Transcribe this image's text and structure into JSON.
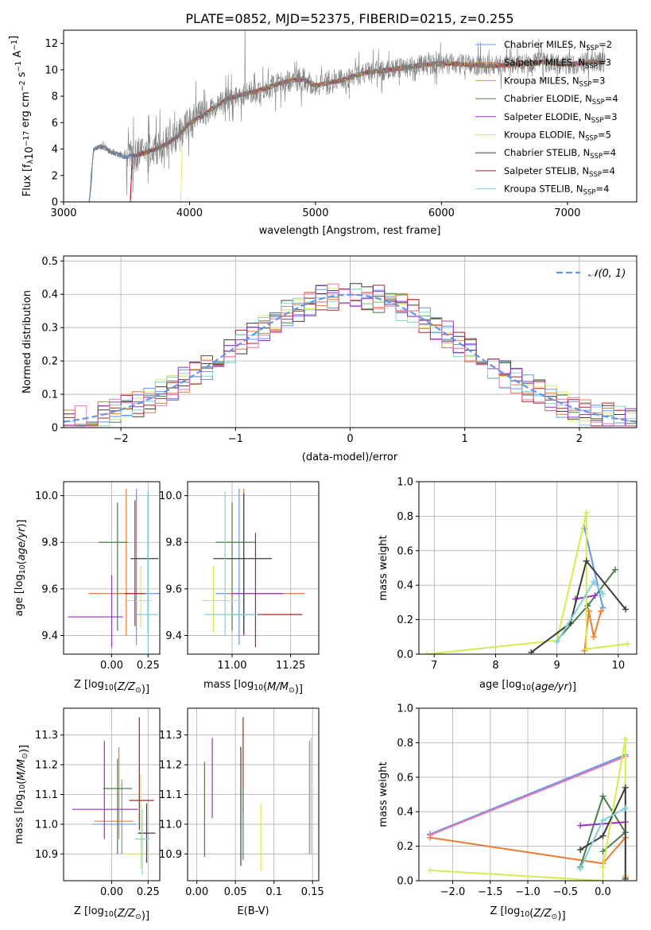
{
  "figure": {
    "title": "PLATE=0852, MJD=52375, FIBERID=0215, z=0.255"
  },
  "colors": {
    "series": [
      "#6495ed",
      "#ee7b30",
      "#c8a020",
      "#4a7f4a",
      "#9b30c8",
      "#d8e860",
      "#3c3c3c",
      "#b22222",
      "#7fd2d8"
    ],
    "kroupa_elodie_line": "#d4ec50",
    "spectrum": "#808080",
    "grid": "#b0b0b0",
    "normal_curve": "#6495ed",
    "salpeter_elodie_right": "#e87ab0"
  },
  "chart_data": [
    {
      "id": "spectrum",
      "type": "line",
      "xlabel": "wavelength [Angstrom, rest frame]",
      "ylabel": "Flux [f_λ 10^-17 erg cm^-2 s^-1 A^-1]",
      "xlim": [
        3000,
        7550
      ],
      "ylim": [
        0,
        13
      ],
      "xticks": [
        3000,
        4000,
        5000,
        6000,
        7000
      ],
      "yticks": [
        0,
        2,
        4,
        6,
        8,
        10,
        12
      ],
      "legend_position": "upper-right",
      "series": [
        {
          "name": "Chabrier MILES, N_SSP=2",
          "start": 3200
        },
        {
          "name": "Salpeter MILES, N_SSP=3",
          "start": 3530
        },
        {
          "name": "Kroupa MILES, N_SSP=3",
          "start": 3530
        },
        {
          "name": "Chabrier ELODIE, N_SSP=4",
          "start": 3530
        },
        {
          "name": "Salpeter ELODIE, N_SSP=3",
          "start": 3530
        },
        {
          "name": "Kroupa ELODIE, N_SSP=5",
          "start": 3930
        },
        {
          "name": "Chabrier STELIB, N_SSP=4",
          "start": 3200
        },
        {
          "name": "Salpeter STELIB, N_SSP=4",
          "start": 3530
        },
        {
          "name": "Kroupa STELIB, N_SSP=4",
          "start": 3200
        }
      ],
      "continuum": {
        "x": [
          3200,
          3240,
          3300,
          3400,
          3500,
          3600,
          3700,
          3800,
          3900,
          4000,
          4100,
          4200,
          4300,
          4400,
          4500,
          4600,
          4700,
          4800,
          4900,
          5000,
          5200,
          5400,
          5600,
          5800,
          6000,
          6200,
          6400,
          6600,
          6800,
          7000,
          7200,
          7300
        ],
        "y": [
          0.0,
          4.0,
          4.2,
          3.7,
          3.4,
          3.6,
          3.9,
          4.3,
          4.9,
          6.0,
          6.5,
          7.2,
          7.8,
          8.1,
          8.3,
          8.6,
          8.9,
          9.2,
          9.3,
          8.8,
          9.2,
          9.8,
          10.0,
          10.3,
          10.5,
          10.4,
          10.3,
          10.4,
          10.6,
          10.4,
          10.6,
          10.6
        ]
      }
    },
    {
      "id": "residuals",
      "type": "line",
      "xlabel": "(data-model)/error",
      "ylabel": "Normed distribution",
      "xlim": [
        -2.5,
        2.5
      ],
      "ylim": [
        0,
        0.515
      ],
      "xticks": [
        -2,
        -1,
        0,
        1,
        2
      ],
      "yticks": [
        0.0,
        0.1,
        0.2,
        0.3,
        0.4,
        0.5
      ],
      "legend": "𝒩(0, 1)",
      "legend_position": "upper-right",
      "curve": "normal pdf, mean 0, sigma 1",
      "bin_width": 0.1
    },
    {
      "id": "age-vs-Z",
      "type": "scatter",
      "xlabel": "Z [log10(Z/Z⊙)]",
      "ylabel": "age  [log10(age/yr)]",
      "xlim": [
        -0.33,
        0.33
      ],
      "ylim": [
        9.32,
        10.06
      ],
      "xticks": [
        0.0,
        0.25
      ],
      "yticks": [
        9.4,
        9.6,
        9.8,
        10.0
      ],
      "points": [
        {
          "c": 0,
          "x": 0.17,
          "y": 9.58,
          "xe": [
            0.14,
            0.18
          ],
          "ye": [
            0.22,
            0.45
          ]
        },
        {
          "c": 1,
          "x": 0.1,
          "y": 9.58,
          "xe": [
            0.26,
            0.06
          ],
          "ye": [
            0.18,
            0.45
          ]
        },
        {
          "c": 3,
          "x": 0.04,
          "y": 9.8,
          "xe": [
            0.13,
            0.07
          ],
          "ye": [
            0.38,
            0.17
          ]
        },
        {
          "c": 4,
          "x": 0.0,
          "y": 9.48,
          "xe": [
            0.3,
            0.08
          ],
          "ye": [
            0.13,
            0.18
          ]
        },
        {
          "c": 5,
          "x": 0.2,
          "y": 9.55,
          "xe": [
            0.1,
            0.08
          ],
          "ye": [
            0.12,
            0.15
          ]
        },
        {
          "c": 6,
          "x": 0.25,
          "y": 9.73,
          "xe": [
            0.12,
            0.07
          ],
          "ye": [
            0.32,
            0.28
          ]
        },
        {
          "c": 7,
          "x": 0.16,
          "y": 9.58,
          "xe": [
            0.07,
            0.07
          ],
          "ye": [
            0.14,
            0.4
          ]
        },
        {
          "c": 8,
          "x": 0.25,
          "y": 9.49,
          "xe": [
            0.08,
            0.07
          ],
          "ye": [
            0.25,
            0.53
          ]
        }
      ]
    },
    {
      "id": "age-vs-mass",
      "type": "scatter",
      "xlabel": "mass [log10(M/M⊙)]",
      "ylabel": "",
      "xlim": [
        10.81,
        11.37
      ],
      "ylim": [
        9.32,
        10.06
      ],
      "xticks": [
        11.0,
        11.25
      ],
      "yticks": [
        9.4,
        9.6,
        9.8,
        10.0
      ],
      "points": [
        {
          "c": 0,
          "x": 11.03,
          "y": 9.58,
          "xe": [
            0.1,
            0.18
          ],
          "ye": [
            0.22,
            0.45
          ]
        },
        {
          "c": 1,
          "x": 11.05,
          "y": 9.58,
          "xe": [
            0.07,
            0.26
          ],
          "ye": [
            0.18,
            0.45
          ]
        },
        {
          "c": 3,
          "x": 11.0,
          "y": 9.8,
          "xe": [
            0.07,
            0.1
          ],
          "ye": [
            0.38,
            0.17
          ]
        },
        {
          "c": 4,
          "x": 11.05,
          "y": 9.58,
          "xe": [
            0.05,
            0.17
          ],
          "ye": [
            0.18,
            0.15
          ]
        },
        {
          "c": 5,
          "x": 10.92,
          "y": 9.55,
          "xe": [
            0.05,
            0.12
          ],
          "ye": [
            0.14,
            0.15
          ]
        },
        {
          "c": 6,
          "x": 11.05,
          "y": 9.73,
          "xe": [
            0.13,
            0.12
          ],
          "ye": [
            0.32,
            0.28
          ]
        },
        {
          "c": 7,
          "x": 11.1,
          "y": 9.49,
          "xe": [
            0.1,
            0.2
          ],
          "ye": [
            0.14,
            0.35
          ]
        },
        {
          "c": 8,
          "x": 10.97,
          "y": 9.49,
          "xe": [
            0.09,
            0.14
          ],
          "ye": [
            0.09,
            0.53
          ]
        }
      ]
    },
    {
      "id": "weight-vs-age",
      "type": "line",
      "xlabel": "age  [log10(age/yr)]",
      "ylabel": "mass weight",
      "xlim": [
        6.75,
        10.3
      ],
      "ylim": [
        0,
        1
      ],
      "xticks": [
        7,
        8,
        9,
        10
      ],
      "yticks": [
        0.0,
        0.2,
        0.4,
        0.6,
        0.8,
        1.0
      ],
      "series": [
        {
          "c": 0,
          "x": [
            9.45,
            9.75
          ],
          "y": [
            0.73,
            0.27
          ]
        },
        {
          "c": 1,
          "x": [
            9.45,
            9.52,
            9.6,
            9.72
          ],
          "y": [
            0.02,
            0.25,
            0.1,
            0.25
          ]
        },
        {
          "c": 3,
          "x": [
            9.0,
            9.5,
            9.95
          ],
          "y": [
            0.08,
            0.28,
            0.49
          ]
        },
        {
          "c": 4,
          "x": [
            9.3,
            9.62
          ],
          "y": [
            0.32,
            0.34
          ]
        },
        {
          "c": 5,
          "x": [
            6.88,
            9.0,
            9.48,
            9.48,
            10.15
          ],
          "y": [
            0.0,
            0.08,
            0.82,
            0.03,
            0.06
          ]
        },
        {
          "c": 6,
          "x": [
            8.58,
            9.22,
            9.48,
            10.12
          ],
          "y": [
            0.01,
            0.18,
            0.54,
            0.26
          ]
        },
        {
          "c": 8,
          "x": [
            9.0,
            9.6,
            9.75
          ],
          "y": [
            0.07,
            0.42,
            0.35
          ]
        }
      ]
    },
    {
      "id": "mass-vs-Z",
      "type": "scatter",
      "xlabel": "Z [log10(Z/Z⊙)]",
      "ylabel": "mass [log10(M/M⊙)]",
      "xlim": [
        -0.33,
        0.33
      ],
      "ylim": [
        10.81,
        11.39
      ],
      "xticks": [
        0.0,
        0.25
      ],
      "yticks": [
        10.9,
        11.0,
        11.1,
        11.2,
        11.3
      ],
      "points": [
        {
          "c": 0,
          "x": 0.07,
          "y": 11.0,
          "xe": [
            0.2,
            0.1
          ],
          "ye": [
            0.1,
            0.15
          ]
        },
        {
          "c": 1,
          "x": 0.05,
          "y": 11.01,
          "xe": [
            0.17,
            0.1
          ],
          "ye": [
            0.06,
            0.25
          ]
        },
        {
          "c": 3,
          "x": 0.04,
          "y": 11.12,
          "xe": [
            0.1,
            0.1
          ],
          "ye": [
            0.22,
            0.1
          ]
        },
        {
          "c": 4,
          "x": -0.05,
          "y": 11.05,
          "xe": [
            0.22,
            0.23
          ],
          "ye": [
            0.1,
            0.23
          ]
        },
        {
          "c": 5,
          "x": 0.2,
          "y": 10.9,
          "xe": [
            0.12,
            0.05
          ],
          "ye": [
            0.05,
            0.27
          ]
        },
        {
          "c": 6,
          "x": 0.24,
          "y": 10.97,
          "xe": [
            0.06,
            0.06
          ],
          "ye": [
            0.1,
            0.1
          ]
        },
        {
          "c": 7,
          "x": 0.19,
          "y": 11.08,
          "xe": [
            0.07,
            0.1
          ],
          "ye": [
            0.1,
            0.28
          ]
        },
        {
          "c": 8,
          "x": 0.21,
          "y": 10.95,
          "xe": [
            0.05,
            0.05
          ],
          "ye": [
            0.12,
            0.1
          ]
        }
      ]
    },
    {
      "id": "mass-vs-ebv",
      "type": "scatter",
      "xlabel": "E(B-V)",
      "ylabel": "",
      "xlim": [
        -0.012,
        0.158
      ],
      "ylim": [
        10.81,
        11.39
      ],
      "xticks": [
        0.0,
        0.05,
        0.1,
        0.15
      ],
      "yticks": [
        10.9,
        11.0,
        11.1,
        11.2,
        11.3
      ],
      "points": [
        {
          "c": 3,
          "x": 0.01,
          "y": 11.05,
          "ye": [
            0.16,
            0.16
          ]
        },
        {
          "c": 4,
          "x": 0.02,
          "y": 11.11,
          "ye": [
            0.09,
            0.18
          ]
        },
        {
          "c": 6,
          "x": 0.057,
          "y": 11.06,
          "ye": [
            0.2,
            0.2
          ]
        },
        {
          "c": 7,
          "x": 0.06,
          "y": 11.1,
          "ye": [
            0.06,
            0.26
          ]
        },
        {
          "c": 3,
          "x": 0.06,
          "y": 11.0,
          "ye": [
            0.12,
            0.12
          ]
        },
        {
          "c": 5,
          "x": 0.083,
          "y": 10.95,
          "ye": [
            0.11,
            0.12
          ]
        },
        {
          "c": 1,
          "x": 0.146,
          "y": 11.09,
          "ye": [
            0.19,
            0.19
          ]
        },
        {
          "c": 8,
          "x": 0.148,
          "y": 11.02,
          "ye": [
            0.12,
            0.27
          ]
        }
      ]
    },
    {
      "id": "weight-vs-Z",
      "type": "line",
      "xlabel": "Z [log10(Z/Z⊙)]",
      "ylabel": "mass weight",
      "xlim": [
        -2.45,
        0.45
      ],
      "ylim": [
        0,
        1
      ],
      "xticks": [
        -2.0,
        -1.5,
        -1.0,
        -0.5,
        0.0
      ],
      "yticks": [
        0.0,
        0.2,
        0.4,
        0.6,
        0.8,
        1.0
      ],
      "series": [
        {
          "c": 0,
          "x": [
            -2.3,
            0.3
          ],
          "y": [
            0.27,
            0.73
          ]
        },
        {
          "c": 9,
          "x": [
            -2.3,
            0.3
          ],
          "y": [
            0.265,
            0.72
          ]
        },
        {
          "c": 1,
          "x": [
            -2.3,
            0.0,
            0.3,
            0.3
          ],
          "y": [
            0.25,
            0.1,
            0.25,
            0.02
          ]
        },
        {
          "c": 3,
          "x": [
            -0.3,
            0.0,
            0.3,
            0.0
          ],
          "y": [
            0.08,
            0.49,
            0.28,
            0.17
          ]
        },
        {
          "c": 4,
          "x": [
            -0.3,
            0.3
          ],
          "y": [
            0.32,
            0.34
          ]
        },
        {
          "c": 5,
          "x": [
            -2.3,
            0.0,
            0.0,
            0.3,
            0.3
          ],
          "y": [
            0.06,
            0.0,
            0.08,
            0.82,
            0.03
          ]
        },
        {
          "c": 6,
          "x": [
            -0.3,
            0.0,
            0.3,
            0.3
          ],
          "y": [
            0.18,
            0.26,
            0.54,
            0.01
          ]
        },
        {
          "c": 8,
          "x": [
            -0.3,
            0.0,
            0.3
          ],
          "y": [
            0.07,
            0.35,
            0.42
          ]
        }
      ]
    }
  ]
}
